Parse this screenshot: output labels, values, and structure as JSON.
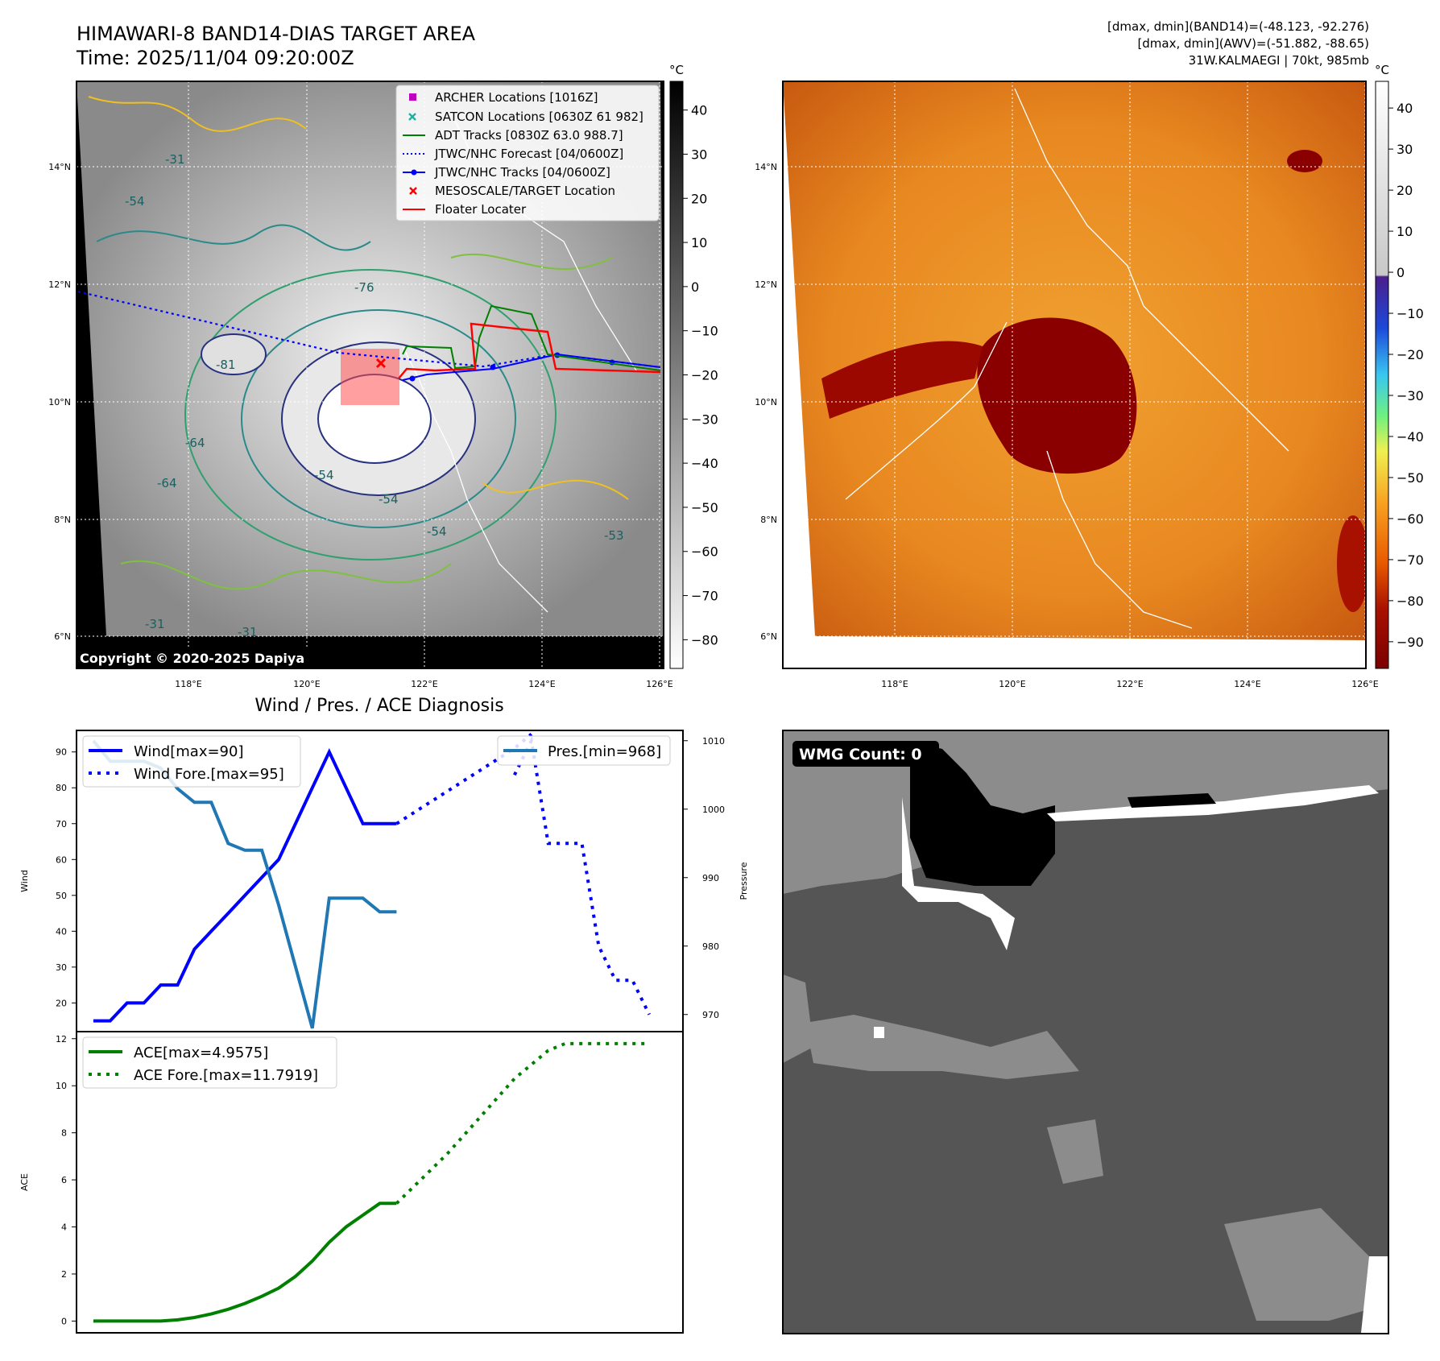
{
  "header": {
    "title": "HIMAWARI-8 BAND14-DIAS TARGET AREA",
    "time": "Time: 2025/11/04 09:20:00Z",
    "dm_band14": "[dmax, dmin](BAND14)=(-48.123, -92.276)",
    "dm_awv": "[dmax, dmin](AWV)=(-51.882, -88.65)",
    "storm": "31W.KALMAEGI | 70kt, 985mb"
  },
  "map": {
    "unit": "°C",
    "lat_labels": [
      "14°N",
      "12°N",
      "10°N",
      "8°N",
      "6°N"
    ],
    "lon_labels": [
      "118°E",
      "120°E",
      "122°E",
      "124°E",
      "126°E"
    ],
    "copyright": "Copyright © 2020-2025 Dapiya",
    "legend": [
      {
        "label": "ARCHER Locations [1016Z]",
        "color": "#c000c0",
        "kind": "square"
      },
      {
        "label": "SATCON Locations [0630Z 61 982]",
        "color": "#20b0a0",
        "kind": "x"
      },
      {
        "label": "ADT Tracks [0830Z 63.0 988.7]",
        "color": "#008000",
        "kind": "line"
      },
      {
        "label": "JTWC/NHC Forecast [04/0600Z]",
        "color": "#0000ff",
        "kind": "dotted"
      },
      {
        "label": "JTWC/NHC Tracks [04/0600Z]",
        "color": "#0000ff",
        "kind": "line-dot"
      },
      {
        "label": "MESOSCALE/TARGET Location",
        "color": "#ff0000",
        "kind": "x"
      },
      {
        "label": "Floater Locater",
        "color": "#ff0000",
        "kind": "line"
      }
    ],
    "contour_labels": [
      "-31",
      "-54",
      "-64",
      "-76",
      "-81",
      "-64",
      "-54",
      "-54",
      "-31",
      "-31",
      "-54",
      "-53"
    ]
  },
  "colorbar_gray": {
    "unit": "°C",
    "ticks": [
      "40",
      "30",
      "20",
      "10",
      "0",
      "−10",
      "−20",
      "−30",
      "−40",
      "−50",
      "−60",
      "−70",
      "−80"
    ]
  },
  "colorbar_color": {
    "unit": "°C",
    "ticks": [
      "40",
      "30",
      "20",
      "10",
      "0",
      "−10",
      "−20",
      "−30",
      "−40",
      "−50",
      "−60",
      "−70",
      "−80",
      "−90"
    ]
  },
  "wmg": {
    "label": "WMG Count: 0"
  },
  "chart_data": [
    {
      "type": "line",
      "title": "Wind / Pres. / ACE Diagnosis",
      "ylabel": "Wind",
      "ylim": [
        12,
        96
      ],
      "xlim": [
        -1,
        35
      ],
      "yticks": [
        20,
        30,
        40,
        50,
        60,
        70,
        80,
        90
      ],
      "series": [
        {
          "name": "Wind",
          "legend": "Wind[max=90]",
          "color": "#0000ff",
          "style": "solid",
          "x": [
            0,
            1,
            2,
            3,
            4,
            5,
            6,
            7,
            8,
            9,
            10,
            11,
            12,
            13,
            14,
            15,
            16,
            17,
            18
          ],
          "values": [
            15,
            15,
            20,
            20,
            25,
            25,
            35,
            40,
            45,
            50,
            55,
            60,
            70,
            80,
            90,
            80,
            70,
            70,
            70
          ]
        },
        {
          "name": "Wind Fore.",
          "legend": "Wind Fore.[max=95]",
          "color": "#0000ff",
          "style": "dotted",
          "x": [
            18,
            19,
            20,
            21,
            22,
            23,
            24,
            25,
            26
          ],
          "values": [
            70,
            73,
            76,
            79,
            82,
            85,
            88,
            91,
            95
          ]
        }
      ]
    },
    {
      "type": "line",
      "ylabel": "Pressure",
      "ylim": [
        967.5,
        1011.5
      ],
      "xlim": [
        -1,
        35
      ],
      "yticks": [
        970,
        980,
        990,
        1000,
        1010
      ],
      "series": [
        {
          "name": "Pres.",
          "legend": "Pres.[min=968]",
          "color": "#1f77b4",
          "style": "solid",
          "x": [
            0,
            1,
            2,
            3,
            4,
            5,
            6,
            7,
            8,
            9,
            10,
            11,
            12,
            13,
            14,
            15,
            16,
            17,
            18
          ],
          "values": [
            1010,
            1007,
            1007,
            1007,
            1006,
            1003,
            1001,
            1001,
            995,
            994,
            994,
            986,
            977,
            968,
            987,
            987,
            987,
            985,
            985
          ]
        },
        {
          "name": "Pres. Fore.",
          "color": "#0000ff",
          "style": "dotted",
          "x": [
            25,
            26,
            27,
            28,
            29,
            30,
            31,
            32,
            33
          ],
          "values": [
            1005,
            1010,
            995,
            995,
            995,
            980,
            975,
            975,
            970
          ]
        }
      ]
    },
    {
      "type": "line",
      "ylabel": "ACE",
      "ylim": [
        -0.5,
        12.3
      ],
      "xlim": [
        -1,
        35
      ],
      "yticks": [
        0,
        2,
        4,
        6,
        8,
        10,
        12
      ],
      "series": [
        {
          "name": "ACE",
          "legend": "ACE[max=4.9575]",
          "color": "#008000",
          "style": "solid",
          "x": [
            0,
            1,
            2,
            3,
            4,
            5,
            6,
            7,
            8,
            9,
            10,
            11,
            12,
            13,
            14,
            15,
            16,
            17,
            18
          ],
          "values": [
            0,
            0,
            0,
            0,
            0,
            0.05,
            0.15,
            0.3,
            0.5,
            0.75,
            1.05,
            1.4,
            1.9,
            2.55,
            3.35,
            4.0,
            4.5,
            5.0,
            5.0
          ]
        },
        {
          "name": "ACE Fore.",
          "legend": "ACE Fore.[max=11.7919]",
          "color": "#008000",
          "style": "dotted",
          "x": [
            18,
            19,
            20,
            21,
            22,
            23,
            24,
            25,
            26,
            27,
            28,
            29,
            30,
            31,
            32,
            33
          ],
          "values": [
            5.0,
            5.7,
            6.4,
            7.1,
            7.9,
            8.7,
            9.5,
            10.3,
            10.9,
            11.5,
            11.79,
            11.79,
            11.79,
            11.79,
            11.79,
            11.79
          ]
        }
      ]
    }
  ]
}
